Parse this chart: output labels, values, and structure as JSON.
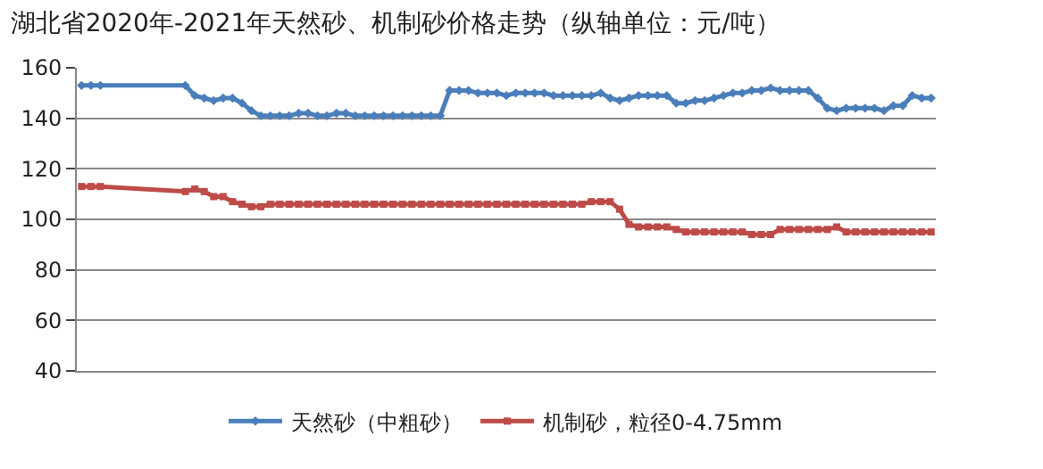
{
  "chart_data": {
    "type": "line",
    "title": "湖北省2020年-2021年天然砂、机制砂价格走势（纵轴单位：元/吨）",
    "categories": [
      null,
      null,
      null,
      null,
      null,
      null,
      null,
      null,
      null,
      null,
      null,
      null,
      null,
      null,
      null,
      null,
      null,
      null,
      null,
      null,
      null,
      null,
      null,
      null,
      null,
      null,
      null,
      null,
      null,
      null,
      null,
      null,
      null,
      null,
      null,
      null,
      null,
      null,
      null,
      null,
      null,
      null,
      null,
      null,
      null,
      null,
      null,
      null,
      null,
      null,
      null,
      null,
      null,
      null,
      null,
      null,
      null,
      null,
      null,
      null,
      null,
      null,
      null,
      null,
      null,
      null,
      null,
      null,
      null,
      null,
      null,
      null,
      null,
      null,
      null,
      null,
      null,
      null,
      null,
      null,
      null,
      null,
      null,
      null,
      null,
      null,
      null,
      null,
      null,
      null,
      null
    ],
    "series": [
      {
        "name": "天然砂（中粗砂）",
        "color": "#4a7ebb",
        "marker": "diamond",
        "values": [
          153,
          153,
          153,
          null,
          null,
          null,
          null,
          null,
          null,
          null,
          null,
          153,
          149,
          148,
          147,
          148,
          148,
          146,
          143,
          141,
          141,
          141,
          141,
          142,
          142,
          141,
          141,
          142,
          142,
          141,
          141,
          141,
          141,
          141,
          141,
          141,
          141,
          141,
          141,
          151,
          151,
          151,
          150,
          150,
          150,
          149,
          150,
          150,
          150,
          150,
          149,
          149,
          149,
          149,
          149,
          150,
          148,
          147,
          148,
          149,
          149,
          149,
          149,
          146,
          146,
          147,
          147,
          148,
          149,
          150,
          150,
          151,
          151,
          152,
          151,
          151,
          151,
          151,
          148,
          144,
          143,
          144,
          144,
          144,
          144,
          143,
          145,
          145,
          149,
          148,
          148
        ]
      },
      {
        "name": "机制砂，粒径0-4.75mm",
        "color": "#be4b48",
        "marker": "square",
        "values": [
          113,
          113,
          113,
          null,
          null,
          null,
          null,
          null,
          null,
          null,
          null,
          111,
          112,
          111,
          109,
          109,
          107,
          106,
          105,
          105,
          106,
          106,
          106,
          106,
          106,
          106,
          106,
          106,
          106,
          106,
          106,
          106,
          106,
          106,
          106,
          106,
          106,
          106,
          106,
          106,
          106,
          106,
          106,
          106,
          106,
          106,
          106,
          106,
          106,
          106,
          106,
          106,
          106,
          106,
          107,
          107,
          107,
          104,
          98,
          97,
          97,
          97,
          97,
          96,
          95,
          95,
          95,
          95,
          95,
          95,
          95,
          94,
          94,
          94,
          96,
          96,
          96,
          96,
          96,
          96,
          97,
          95,
          95,
          95,
          95,
          95,
          95,
          95,
          95,
          95,
          95
        ]
      }
    ],
    "ylim": [
      40,
      160
    ],
    "yticks": [
      40,
      60,
      80,
      100,
      120,
      140,
      160
    ],
    "grid": "y",
    "legend": "bottom",
    "line_style": "solid"
  }
}
